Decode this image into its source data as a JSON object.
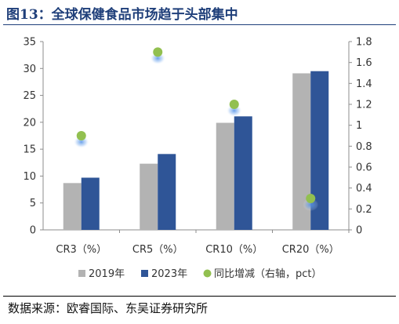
{
  "title": "图13：全球保健食品市场趋于头部集中",
  "source": "数据来源：欧睿国际、东吴证券研究所",
  "chart_data": {
    "type": "bar",
    "categories": [
      "CR3（%）",
      "CR5（%）",
      "CR10（%）",
      "CR20（%）"
    ],
    "series": [
      {
        "name": "2019年",
        "type": "bar",
        "axis": "left",
        "color": "#b3b3b3",
        "values": [
          8.7,
          12.3,
          19.9,
          29.1
        ]
      },
      {
        "name": "2023年",
        "type": "bar",
        "axis": "left",
        "color": "#2f5597",
        "values": [
          9.7,
          14.1,
          21.1,
          29.5
        ]
      },
      {
        "name": "同比增减（右轴，pct）",
        "type": "scatter",
        "axis": "right",
        "color": "#92c050",
        "values": [
          0.9,
          1.7,
          1.2,
          0.3
        ]
      }
    ],
    "y_left": {
      "min": 0,
      "max": 35,
      "ticks": [
        0,
        5,
        10,
        15,
        20,
        25,
        30,
        35
      ]
    },
    "y_right": {
      "min": 0,
      "max": 1.8,
      "ticks": [
        "0",
        "0.2",
        "0.4",
        "0.6",
        "0.8",
        "1",
        "1.2",
        "1.4",
        "1.6",
        "1.8"
      ]
    },
    "grid": false,
    "legend_position": "bottom"
  }
}
